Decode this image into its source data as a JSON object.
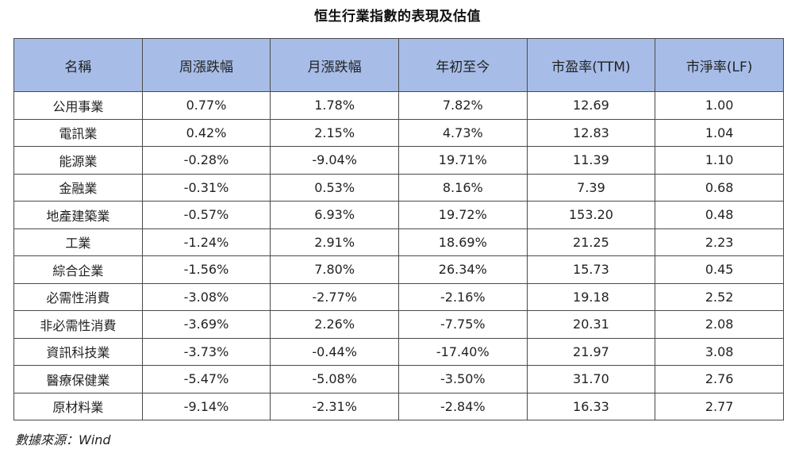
{
  "title": "恒生行業指數的表現及估值",
  "columns": [
    "名稱",
    "周漲跌幅",
    "月漲跌幅",
    "年初至今",
    "市盈率(TTM)",
    "市淨率(LF)"
  ],
  "rows": [
    [
      "公用事業",
      "0.77%",
      "1.78%",
      "7.82%",
      "12.69",
      "1.00"
    ],
    [
      "電訊業",
      "0.42%",
      "2.15%",
      "4.73%",
      "12.83",
      "1.04"
    ],
    [
      "能源業",
      "-0.28%",
      "-9.04%",
      "19.71%",
      "11.39",
      "1.10"
    ],
    [
      "金融業",
      "-0.31%",
      "0.53%",
      "8.16%",
      "7.39",
      "0.68"
    ],
    [
      "地產建築業",
      "-0.57%",
      "6.93%",
      "19.72%",
      "153.20",
      "0.48"
    ],
    [
      "工業",
      "-1.24%",
      "2.91%",
      "18.69%",
      "21.25",
      "2.23"
    ],
    [
      "綜合企業",
      "-1.56%",
      "7.80%",
      "26.34%",
      "15.73",
      "0.45"
    ],
    [
      "必需性消費",
      "-3.08%",
      "-2.77%",
      "-2.16%",
      "19.18",
      "2.52"
    ],
    [
      "非必需性消費",
      "-3.69%",
      "2.26%",
      "-7.75%",
      "20.31",
      "2.08"
    ],
    [
      "資訊科技業",
      "-3.73%",
      "-0.44%",
      "-17.40%",
      "21.97",
      "3.08"
    ],
    [
      "醫療保健業",
      "-5.47%",
      "-5.08%",
      "-3.50%",
      "31.70",
      "2.76"
    ],
    [
      "原材料業",
      "-9.14%",
      "-2.31%",
      "-2.84%",
      "16.33",
      "2.77"
    ]
  ],
  "source": "數據來源：Wind",
  "colors": {
    "header_bg": "#a7bde8",
    "border": "#4a4a4a"
  }
}
